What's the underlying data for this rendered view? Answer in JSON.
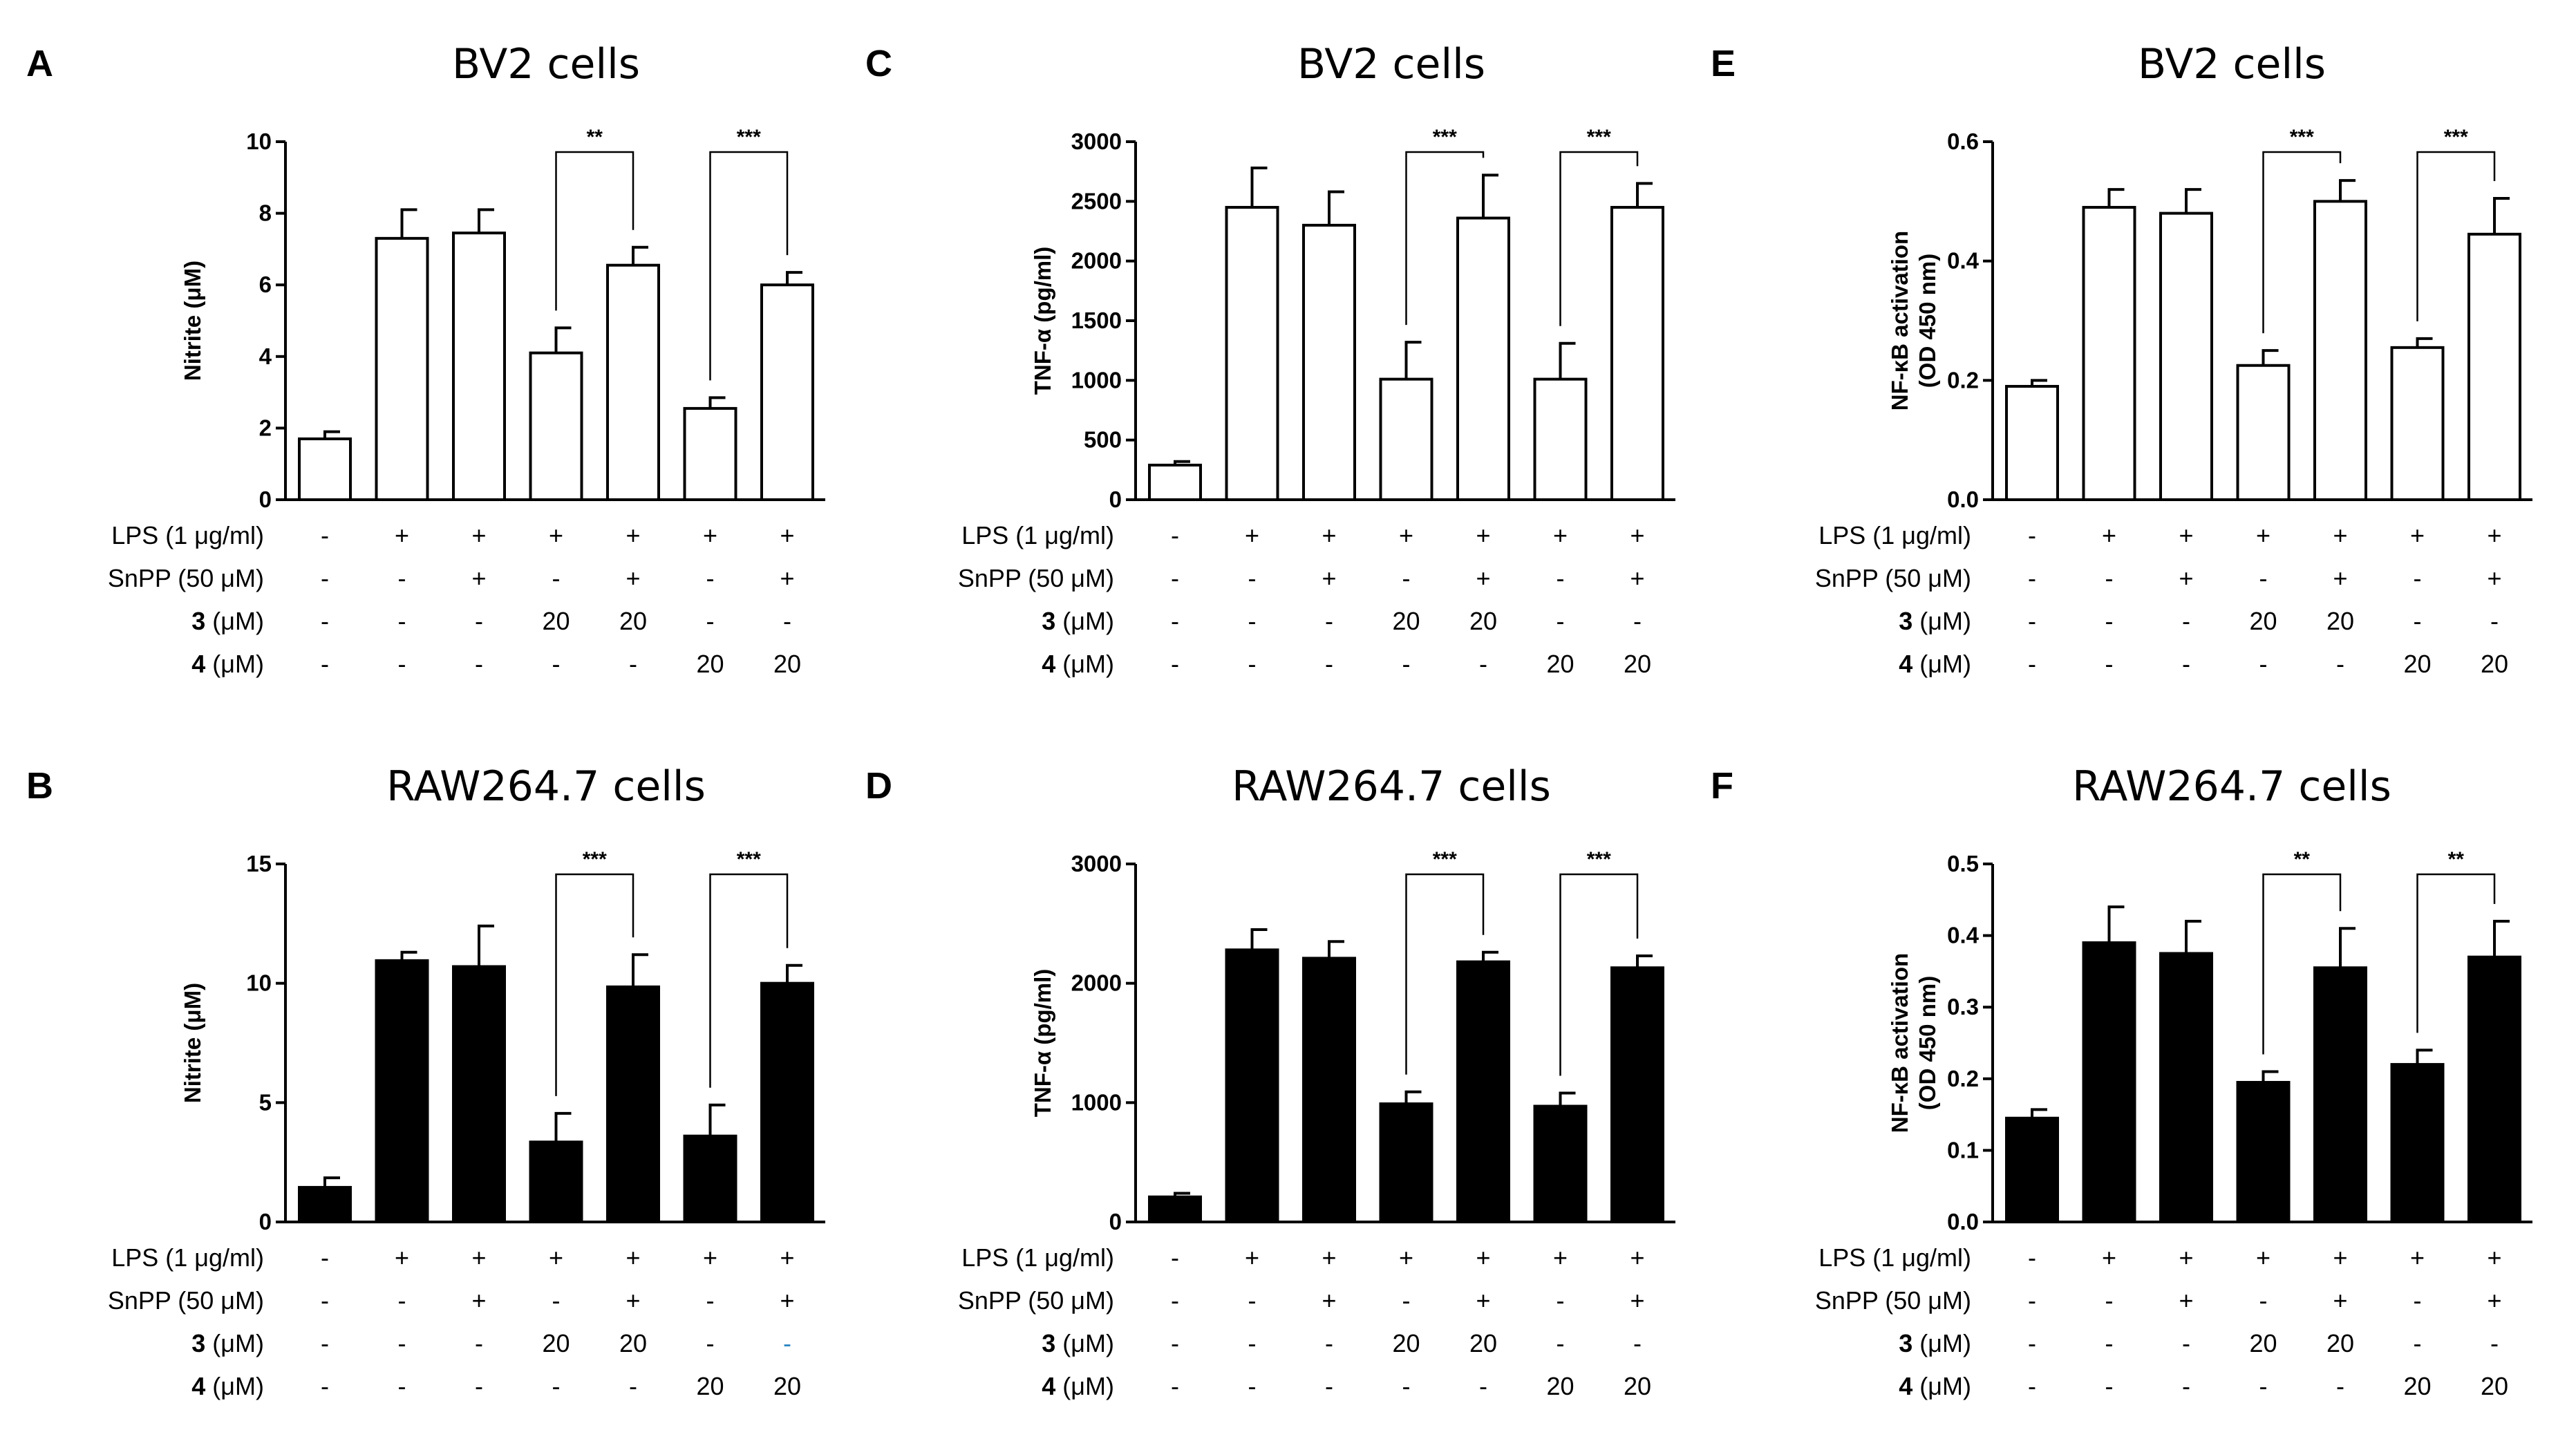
{
  "chart_data": [
    {
      "panel": "A",
      "title": "BV2 cells",
      "type": "bar",
      "fill": "white",
      "ylabel": "Nitrite (μM)",
      "ylim": [
        0,
        10
      ],
      "yticks": [
        "0",
        "2",
        "4",
        "6",
        "8",
        "10"
      ],
      "values": [
        1.7,
        7.3,
        7.45,
        4.1,
        6.55,
        2.55,
        6.0
      ],
      "errors": [
        0.2,
        0.8,
        0.65,
        0.7,
        0.5,
        0.3,
        0.35
      ],
      "significance": [
        {
          "from": 3,
          "to": 4,
          "label": "**"
        },
        {
          "from": 5,
          "to": 6,
          "label": "***"
        }
      ],
      "conditions": [
        {
          "name": "LPS (1 μg/ml)",
          "values": [
            "-",
            "+",
            "+",
            "+",
            "+",
            "+",
            "+"
          ]
        },
        {
          "name_num": "",
          "name": "SnPP (50 μM)",
          "values": [
            "-",
            "-",
            "+",
            "-",
            "+",
            "-",
            "+"
          ]
        },
        {
          "name_num": "3",
          "name": " (μM)",
          "values": [
            "-",
            "-",
            "-",
            "20",
            "20",
            "-",
            "-"
          ]
        },
        {
          "name_num": "4",
          "name": " (μM)",
          "values": [
            "-",
            "-",
            "-",
            "-",
            "-",
            "20",
            "20"
          ]
        }
      ]
    },
    {
      "panel": "C",
      "title": "BV2 cells",
      "type": "bar",
      "fill": "white",
      "ylabel": "TNF-α (pg/ml)",
      "ylim": [
        0,
        3000
      ],
      "yticks": [
        "0",
        "500",
        "1000",
        "1500",
        "2000",
        "2500",
        "3000"
      ],
      "values": [
        290,
        2450,
        2300,
        1010,
        2360,
        1010,
        2450
      ],
      "errors": [
        30,
        330,
        280,
        310,
        360,
        300,
        200
      ],
      "significance": [
        {
          "from": 3,
          "to": 4,
          "label": "***"
        },
        {
          "from": 5,
          "to": 6,
          "label": "***"
        }
      ],
      "conditions": [
        {
          "name": "LPS (1 μg/ml)",
          "values": [
            "-",
            "+",
            "+",
            "+",
            "+",
            "+",
            "+"
          ]
        },
        {
          "name_num": "",
          "name": "SnPP (50 μM)",
          "values": [
            "-",
            "-",
            "+",
            "-",
            "+",
            "-",
            "+"
          ]
        },
        {
          "name_num": "3",
          "name": " (μM)",
          "values": [
            "-",
            "-",
            "-",
            "20",
            "20",
            "-",
            "-"
          ]
        },
        {
          "name_num": "4",
          "name": " (μM)",
          "values": [
            "-",
            "-",
            "-",
            "-",
            "-",
            "20",
            "20"
          ]
        }
      ]
    },
    {
      "panel": "E",
      "title": "BV2 cells",
      "type": "bar",
      "fill": "white",
      "ylabel": "NF-κB activation",
      "ylabel2": "(OD 450 nm)",
      "ylim": [
        0,
        0.6
      ],
      "yticks": [
        "0.0",
        "0.2",
        "0.4",
        "0.6"
      ],
      "values": [
        0.19,
        0.49,
        0.48,
        0.225,
        0.5,
        0.255,
        0.445
      ],
      "errors": [
        0.01,
        0.03,
        0.04,
        0.025,
        0.035,
        0.015,
        0.06
      ],
      "significance": [
        {
          "from": 3,
          "to": 4,
          "label": "***"
        },
        {
          "from": 5,
          "to": 6,
          "label": "***"
        }
      ],
      "conditions": [
        {
          "name": "LPS (1 μg/ml)",
          "values": [
            "-",
            "+",
            "+",
            "+",
            "+",
            "+",
            "+"
          ]
        },
        {
          "name_num": "",
          "name": "SnPP (50 μM)",
          "values": [
            "-",
            "-",
            "+",
            "-",
            "+",
            "-",
            "+"
          ]
        },
        {
          "name_num": "3",
          "name": " (μM)",
          "values": [
            "-",
            "-",
            "-",
            "20",
            "20",
            "-",
            "-"
          ]
        },
        {
          "name_num": "4",
          "name": " (μM)",
          "values": [
            "-",
            "-",
            "-",
            "-",
            "-",
            "20",
            "20"
          ]
        }
      ]
    },
    {
      "panel": "B",
      "title": "RAW264.7 cells",
      "type": "bar",
      "fill": "black",
      "ylabel": "Nitrite (μM)",
      "ylim": [
        0,
        15
      ],
      "yticks": [
        "0",
        "5",
        "10",
        "15"
      ],
      "values": [
        1.45,
        10.95,
        10.7,
        3.35,
        9.85,
        3.6,
        10.0
      ],
      "errors": [
        0.4,
        0.35,
        1.7,
        1.2,
        1.35,
        1.3,
        0.75
      ],
      "significance": [
        {
          "from": 3,
          "to": 4,
          "label": "***"
        },
        {
          "from": 5,
          "to": 6,
          "label": "***"
        }
      ],
      "conditions": [
        {
          "name": "LPS (1 μg/ml)",
          "values": [
            "-",
            "+",
            "+",
            "+",
            "+",
            "+",
            "+"
          ]
        },
        {
          "name_num": "",
          "name": "SnPP (50 μM)",
          "values": [
            "-",
            "-",
            "+",
            "-",
            "+",
            "-",
            "+"
          ]
        },
        {
          "name_num": "3",
          "name": " (μM)",
          "values": [
            "-",
            "-",
            "-",
            "20",
            "20",
            "-",
            "-"
          ],
          "blue_index": 6
        },
        {
          "name_num": "4",
          "name": " (μM)",
          "values": [
            "-",
            "-",
            "-",
            "-",
            "-",
            "20",
            "20"
          ]
        }
      ]
    },
    {
      "panel": "D",
      "title": "RAW264.7 cells",
      "type": "bar",
      "fill": "black",
      "ylabel": "TNF-α (pg/ml)",
      "ylim": [
        0,
        3000
      ],
      "yticks": [
        "0",
        "1000",
        "2000",
        "3000"
      ],
      "values": [
        210,
        2280,
        2210,
        990,
        2180,
        970,
        2130
      ],
      "errors": [
        30,
        170,
        140,
        100,
        80,
        110,
        100
      ],
      "significance": [
        {
          "from": 3,
          "to": 4,
          "label": "***"
        },
        {
          "from": 5,
          "to": 6,
          "label": "***"
        }
      ],
      "conditions": [
        {
          "name": "LPS (1 μg/ml)",
          "values": [
            "-",
            "+",
            "+",
            "+",
            "+",
            "+",
            "+"
          ]
        },
        {
          "name_num": "",
          "name": "SnPP (50 μM)",
          "values": [
            "-",
            "-",
            "+",
            "-",
            "+",
            "-",
            "+"
          ]
        },
        {
          "name_num": "3",
          "name": " (μM)",
          "values": [
            "-",
            "-",
            "-",
            "20",
            "20",
            "-",
            "-"
          ]
        },
        {
          "name_num": "4",
          "name": " (μM)",
          "values": [
            "-",
            "-",
            "-",
            "-",
            "-",
            "20",
            "20"
          ]
        }
      ]
    },
    {
      "panel": "F",
      "title": "RAW264.7 cells",
      "type": "bar",
      "fill": "black",
      "ylabel": "NF-κB activation",
      "ylabel2": "(OD 450 nm)",
      "ylim": [
        0,
        0.5
      ],
      "yticks": [
        "0.0",
        "0.1",
        "0.2",
        "0.3",
        "0.4",
        "0.5"
      ],
      "values": [
        0.145,
        0.39,
        0.375,
        0.195,
        0.355,
        0.22,
        0.37
      ],
      "errors": [
        0.012,
        0.05,
        0.045,
        0.015,
        0.055,
        0.02,
        0.05
      ],
      "significance": [
        {
          "from": 3,
          "to": 4,
          "label": "**"
        },
        {
          "from": 5,
          "to": 6,
          "label": "**"
        }
      ],
      "conditions": [
        {
          "name": "LPS (1 μg/ml)",
          "values": [
            "-",
            "+",
            "+",
            "+",
            "+",
            "+",
            "+"
          ]
        },
        {
          "name_num": "",
          "name": "SnPP (50 μM)",
          "values": [
            "-",
            "-",
            "+",
            "-",
            "+",
            "-",
            "+"
          ]
        },
        {
          "name_num": "3",
          "name": " (μM)",
          "values": [
            "-",
            "-",
            "-",
            "20",
            "20",
            "-",
            "-"
          ]
        },
        {
          "name_num": "4",
          "name": " (μM)",
          "values": [
            "-",
            "-",
            "-",
            "-",
            "-",
            "20",
            "20"
          ]
        }
      ]
    }
  ]
}
